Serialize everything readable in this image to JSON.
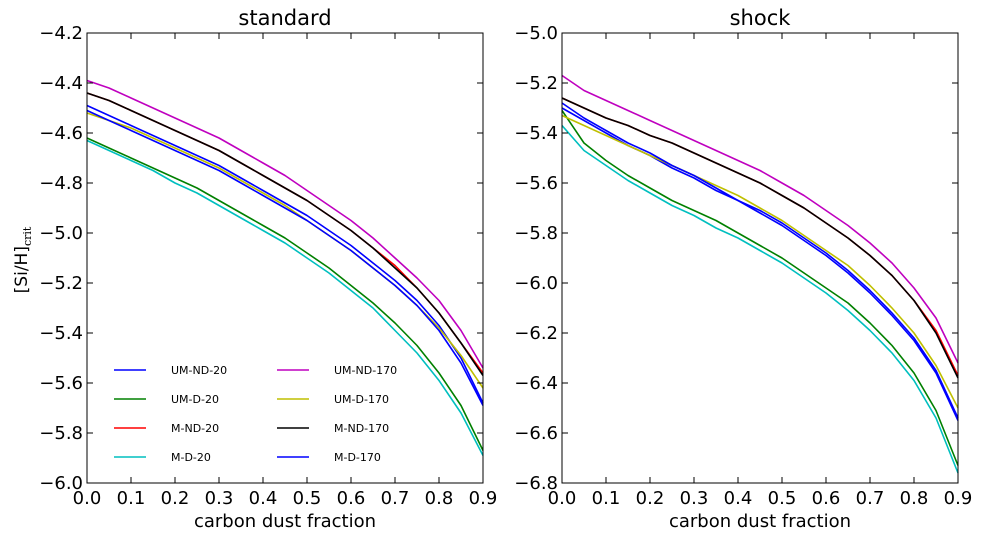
{
  "ylabel": {
    "main": "[Si/H]",
    "sub": "crit"
  },
  "chart_data": [
    {
      "type": "line",
      "title": "standard",
      "xlabel": "carbon dust fraction",
      "ylabel": "[Si/H]crit",
      "xlim": [
        0.0,
        0.9
      ],
      "ylim": [
        -6.0,
        -4.2
      ],
      "xticks": [
        "0.0",
        "0.1",
        "0.2",
        "0.3",
        "0.4",
        "0.5",
        "0.6",
        "0.7",
        "0.8",
        "0.9"
      ],
      "yticks": [
        "−4.2",
        "−4.4",
        "−4.6",
        "−4.8",
        "−5.0",
        "−5.2",
        "−5.4",
        "−5.6",
        "−5.8",
        "−6.0"
      ],
      "x": [
        0.0,
        0.05,
        0.1,
        0.15,
        0.2,
        0.25,
        0.3,
        0.35,
        0.4,
        0.45,
        0.5,
        0.55,
        0.6,
        0.65,
        0.7,
        0.75,
        0.8,
        0.85,
        0.9
      ],
      "legend": {
        "placement": "lower-left",
        "columns": 2
      },
      "series": [
        {
          "name": "UM-ND-20",
          "color": "#0000ff",
          "values": [
            -4.49,
            -4.53,
            -4.57,
            -4.61,
            -4.65,
            -4.69,
            -4.73,
            -4.78,
            -4.83,
            -4.88,
            -4.93,
            -4.99,
            -5.05,
            -5.12,
            -5.19,
            -5.27,
            -5.37,
            -5.5,
            -5.68
          ]
        },
        {
          "name": "UM-D-20",
          "color": "#008000",
          "values": [
            -4.62,
            -4.66,
            -4.7,
            -4.74,
            -4.78,
            -4.82,
            -4.87,
            -4.92,
            -4.97,
            -5.02,
            -5.08,
            -5.14,
            -5.21,
            -5.28,
            -5.36,
            -5.45,
            -5.56,
            -5.69,
            -5.87
          ]
        },
        {
          "name": "M-ND-20",
          "color": "#ff0000",
          "values": [
            -4.44,
            -4.47,
            -4.51,
            -4.55,
            -4.59,
            -4.63,
            -4.67,
            -4.72,
            -4.77,
            -4.82,
            -4.87,
            -4.93,
            -4.99,
            -5.06,
            -5.13,
            -5.22,
            -5.32,
            -5.44,
            -5.56
          ]
        },
        {
          "name": "M-D-20",
          "color": "#00bfbf",
          "values": [
            -4.63,
            -4.67,
            -4.71,
            -4.75,
            -4.8,
            -4.84,
            -4.89,
            -4.94,
            -4.99,
            -5.04,
            -5.1,
            -5.16,
            -5.23,
            -5.3,
            -5.39,
            -5.48,
            -5.59,
            -5.72,
            -5.89
          ]
        },
        {
          "name": "UM-ND-170",
          "color": "#bf00bf",
          "values": [
            -4.39,
            -4.42,
            -4.46,
            -4.5,
            -4.54,
            -4.58,
            -4.62,
            -4.67,
            -4.72,
            -4.77,
            -4.83,
            -4.89,
            -4.95,
            -5.02,
            -5.1,
            -5.18,
            -5.27,
            -5.39,
            -5.54
          ]
        },
        {
          "name": "UM-D-170",
          "color": "#bfbf00",
          "values": [
            -4.52,
            -4.55,
            -4.58,
            -4.62,
            -4.66,
            -4.7,
            -4.74,
            -4.79,
            -4.84,
            -4.89,
            -4.95,
            -5.01,
            -5.07,
            -5.14,
            -5.21,
            -5.29,
            -5.38,
            -5.49,
            -5.62
          ]
        },
        {
          "name": "M-ND-170",
          "color": "#000000",
          "values": [
            -4.44,
            -4.47,
            -4.51,
            -4.55,
            -4.59,
            -4.63,
            -4.67,
            -4.72,
            -4.77,
            -4.82,
            -4.87,
            -4.93,
            -4.99,
            -5.06,
            -5.14,
            -5.22,
            -5.32,
            -5.44,
            -5.57
          ]
        },
        {
          "name": "M-D-170",
          "color": "#0000ff",
          "values": [
            -4.51,
            -4.55,
            -4.59,
            -4.63,
            -4.67,
            -4.71,
            -4.75,
            -4.8,
            -4.85,
            -4.9,
            -4.95,
            -5.01,
            -5.07,
            -5.14,
            -5.21,
            -5.29,
            -5.39,
            -5.52,
            -5.69
          ]
        }
      ]
    },
    {
      "type": "line",
      "title": "shock",
      "xlabel": "carbon dust fraction",
      "ylabel": "",
      "xlim": [
        0.0,
        0.9
      ],
      "ylim": [
        -6.8,
        -5.0
      ],
      "xticks": [
        "0.0",
        "0.1",
        "0.2",
        "0.3",
        "0.4",
        "0.5",
        "0.6",
        "0.7",
        "0.8",
        "0.9"
      ],
      "yticks": [
        "−5.0",
        "−5.2",
        "−5.4",
        "−5.6",
        "−5.8",
        "−6.0",
        "−6.2",
        "−6.4",
        "−6.6",
        "−6.8"
      ],
      "x": [
        0.0,
        0.05,
        0.1,
        0.15,
        0.2,
        0.25,
        0.3,
        0.35,
        0.4,
        0.45,
        0.5,
        0.55,
        0.6,
        0.65,
        0.7,
        0.75,
        0.8,
        0.85,
        0.9
      ],
      "series": [
        {
          "name": "UM-ND-20",
          "color": "#0000ff",
          "values": [
            -5.3,
            -5.35,
            -5.4,
            -5.45,
            -5.49,
            -5.54,
            -5.58,
            -5.63,
            -5.67,
            -5.72,
            -5.77,
            -5.83,
            -5.89,
            -5.96,
            -6.04,
            -6.13,
            -6.23,
            -6.36,
            -6.55
          ]
        },
        {
          "name": "UM-D-20",
          "color": "#008000",
          "values": [
            -5.31,
            -5.44,
            -5.51,
            -5.57,
            -5.62,
            -5.67,
            -5.71,
            -5.75,
            -5.8,
            -5.85,
            -5.9,
            -5.96,
            -6.02,
            -6.08,
            -6.16,
            -6.25,
            -6.36,
            -6.51,
            -6.73
          ]
        },
        {
          "name": "M-ND-20",
          "color": "#ff0000",
          "values": [
            -5.26,
            -5.3,
            -5.34,
            -5.37,
            -5.41,
            -5.44,
            -5.48,
            -5.52,
            -5.56,
            -5.6,
            -5.65,
            -5.7,
            -5.76,
            -5.82,
            -5.89,
            -5.97,
            -6.07,
            -6.19,
            -6.37
          ]
        },
        {
          "name": "M-D-20",
          "color": "#00bfbf",
          "values": [
            -5.37,
            -5.47,
            -5.53,
            -5.59,
            -5.64,
            -5.69,
            -5.73,
            -5.78,
            -5.82,
            -5.87,
            -5.92,
            -5.98,
            -6.04,
            -6.11,
            -6.19,
            -6.28,
            -6.39,
            -6.54,
            -6.76
          ]
        },
        {
          "name": "UM-ND-170",
          "color": "#bf00bf",
          "values": [
            -5.17,
            -5.23,
            -5.27,
            -5.31,
            -5.35,
            -5.39,
            -5.43,
            -5.47,
            -5.51,
            -5.55,
            -5.6,
            -5.65,
            -5.71,
            -5.77,
            -5.84,
            -5.92,
            -6.02,
            -6.14,
            -6.32
          ]
        },
        {
          "name": "UM-D-170",
          "color": "#bfbf00",
          "values": [
            -5.33,
            -5.37,
            -5.41,
            -5.45,
            -5.49,
            -5.53,
            -5.57,
            -5.61,
            -5.65,
            -5.7,
            -5.75,
            -5.81,
            -5.87,
            -5.93,
            -6.01,
            -6.1,
            -6.2,
            -6.33,
            -6.5
          ]
        },
        {
          "name": "M-ND-170",
          "color": "#000000",
          "values": [
            -5.26,
            -5.3,
            -5.34,
            -5.37,
            -5.41,
            -5.44,
            -5.48,
            -5.52,
            -5.56,
            -5.6,
            -5.65,
            -5.7,
            -5.76,
            -5.82,
            -5.89,
            -5.97,
            -6.07,
            -6.2,
            -6.38
          ]
        },
        {
          "name": "M-D-170",
          "color": "#0000ff",
          "values": [
            -5.28,
            -5.34,
            -5.39,
            -5.44,
            -5.48,
            -5.53,
            -5.57,
            -5.62,
            -5.67,
            -5.71,
            -5.76,
            -5.82,
            -5.88,
            -5.95,
            -6.03,
            -6.12,
            -6.22,
            -6.35,
            -6.54
          ]
        }
      ]
    }
  ]
}
